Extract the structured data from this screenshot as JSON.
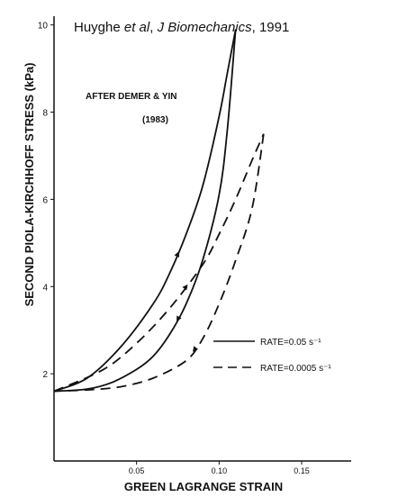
{
  "citation": {
    "author": "Huyghe",
    "etal": " et al",
    "comma": ", ",
    "journal": "J Biomechanics",
    "year": ", 1991"
  },
  "annotation": {
    "line1": "AFTER DEMER & YIN",
    "line2": "(1983)"
  },
  "chart_data": {
    "type": "line",
    "xlabel": "GREEN LAGRANGE STRAIN",
    "ylabel": "SECOND PIOLA-KIRCHHOFF STRESS (kPa)",
    "xlim": [
      0,
      0.18
    ],
    "ylim": [
      0,
      10.2
    ],
    "xticks": [
      0.05,
      0.1,
      0.15
    ],
    "xtick_labels": [
      "0.05",
      "0.10",
      "0.15"
    ],
    "yticks": [
      2,
      4,
      6,
      8,
      10
    ],
    "ytick_labels": [
      "2",
      "4",
      "6",
      "8",
      "10"
    ],
    "grid": false,
    "legend_position": "lower-right",
    "series": [
      {
        "name": "RATE=0.05 s⁻¹",
        "style": "solid",
        "color": "#111111",
        "loading": [
          [
            0,
            1.6
          ],
          [
            0.02,
            1.9
          ],
          [
            0.04,
            2.6
          ],
          [
            0.06,
            3.6
          ],
          [
            0.07,
            4.3
          ],
          [
            0.08,
            5.2
          ],
          [
            0.09,
            6.3
          ],
          [
            0.1,
            7.9
          ],
          [
            0.105,
            8.9
          ],
          [
            0.11,
            9.9
          ]
        ],
        "unloading": [
          [
            0.11,
            9.9
          ],
          [
            0.105,
            7.6
          ],
          [
            0.1,
            6.1
          ],
          [
            0.09,
            4.6
          ],
          [
            0.08,
            3.6
          ],
          [
            0.07,
            2.9
          ],
          [
            0.06,
            2.4
          ],
          [
            0.05,
            2.1
          ],
          [
            0.035,
            1.8
          ],
          [
            0.02,
            1.65
          ],
          [
            0,
            1.6
          ]
        ]
      },
      {
        "name": "RATE=0.0005 s⁻¹",
        "style": "dashed",
        "color": "#111111",
        "loading": [
          [
            0,
            1.6
          ],
          [
            0.03,
            2.1
          ],
          [
            0.05,
            2.7
          ],
          [
            0.07,
            3.5
          ],
          [
            0.09,
            4.5
          ],
          [
            0.1,
            5.2
          ],
          [
            0.11,
            6.0
          ],
          [
            0.12,
            6.9
          ],
          [
            0.127,
            7.5
          ]
        ],
        "unloading": [
          [
            0.127,
            7.5
          ],
          [
            0.12,
            5.8
          ],
          [
            0.11,
            4.6
          ],
          [
            0.1,
            3.6
          ],
          [
            0.09,
            2.8
          ],
          [
            0.08,
            2.3
          ],
          [
            0.06,
            1.9
          ],
          [
            0.04,
            1.7
          ],
          [
            0.02,
            1.63
          ],
          [
            0,
            1.6
          ]
        ]
      }
    ]
  }
}
